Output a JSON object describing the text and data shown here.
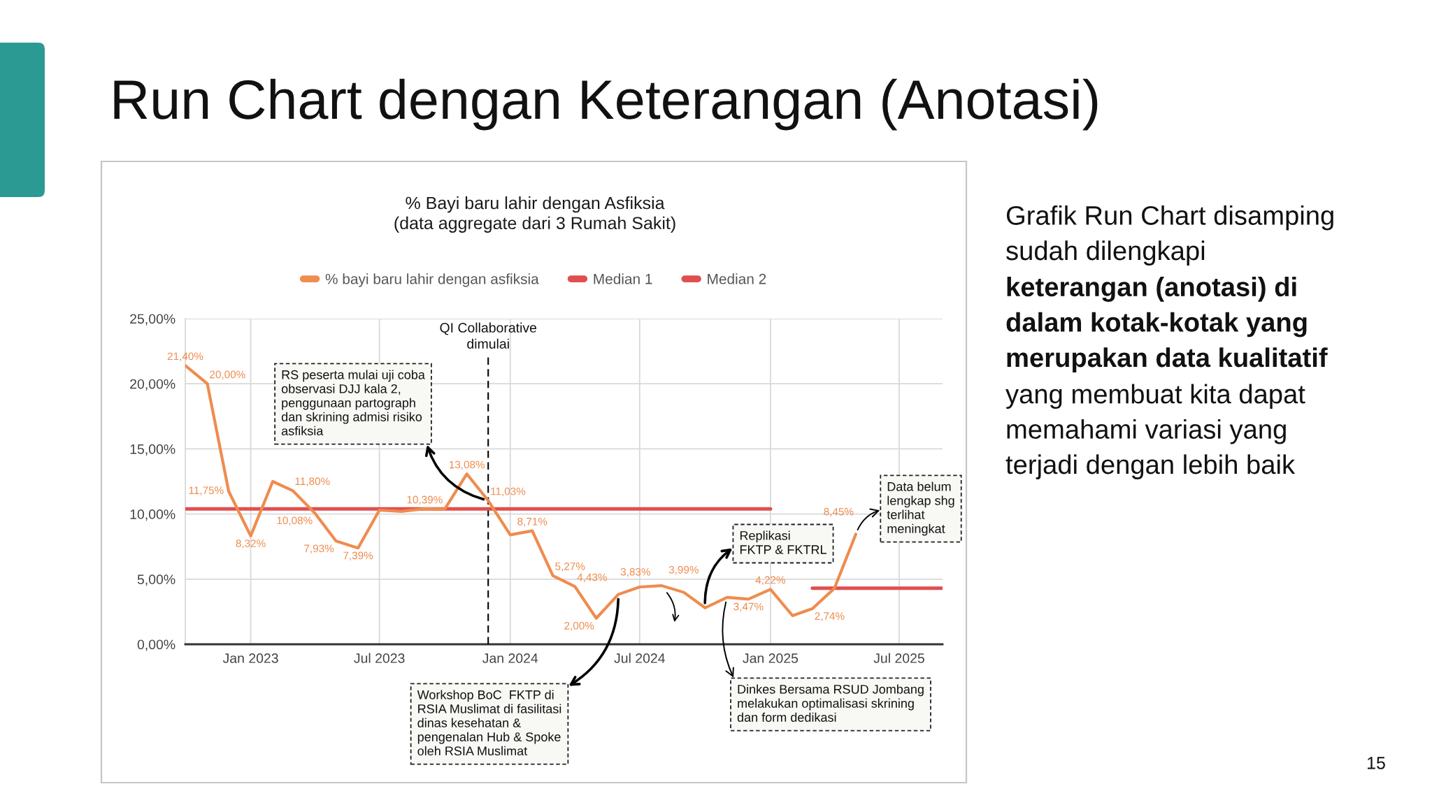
{
  "chart_data": [
    {
      "type": "line",
      "title": "% Bayi baru lahir dengan Asfiksia\n(data aggregate dari 3 Rumah Sakit)",
      "x": [
        "2022-10",
        "2022-11",
        "2022-12",
        "2023-01",
        "2023-02",
        "2023-03",
        "2023-04",
        "2023-05",
        "2023-06",
        "2023-07",
        "2023-08",
        "2023-09",
        "2023-10",
        "2023-11",
        "2023-12",
        "2024-01",
        "2024-02",
        "2024-03",
        "2024-04",
        "2024-05",
        "2024-06",
        "2024-07",
        "2024-08",
        "2024-09",
        "2024-10",
        "2024-11",
        "2024-12",
        "2025-01",
        "2025-02",
        "2025-03",
        "2025-04",
        "2025-05"
      ],
      "series": [
        {
          "name": "% bayi baru lahir dengan asfiksia",
          "color": "#ef8c4f",
          "values": [
            21.4,
            20.0,
            11.75,
            8.32,
            12.5,
            11.8,
            10.08,
            7.93,
            7.39,
            10.3,
            10.2,
            10.4,
            10.39,
            13.08,
            11.03,
            8.4,
            8.71,
            5.27,
            4.43,
            2.0,
            3.83,
            4.4,
            4.5,
            3.99,
            2.8,
            3.6,
            3.47,
            4.22,
            2.2,
            2.74,
            4.3,
            8.45
          ],
          "value_labels": [
            "21,40%",
            "20,00%",
            "11,75%",
            "8,32%",
            null,
            "11,80%",
            "10,08%",
            "7,93%",
            "7,39%",
            null,
            null,
            null,
            "10,39%",
            "13,08%",
            "11,03%",
            null,
            "8,71%",
            "5,27%",
            "4,43%",
            "2,00%",
            "3,83%",
            null,
            null,
            "3,99%",
            null,
            null,
            "3,47%",
            "4,22%",
            null,
            "2,74%",
            null,
            "8,45%"
          ]
        },
        {
          "name": "Median 1",
          "color": "#e04e4e",
          "x": [
            "2022-10",
            "2025-01"
          ],
          "values": [
            10.4,
            10.4
          ]
        },
        {
          "name": "Median 2",
          "color": "#e04e4e",
          "x": [
            "2025-03",
            "2025-08-31"
          ],
          "values": [
            4.3,
            4.3
          ]
        }
      ],
      "xlim": [
        "2022-10",
        "2025-08-31"
      ],
      "xticks": [
        {
          "value": "2023-01",
          "label": "Jan 2023"
        },
        {
          "value": "2023-07",
          "label": "Jul 2023"
        },
        {
          "value": "2024-01",
          "label": "Jan 2024"
        },
        {
          "value": "2024-07",
          "label": "Jul 2024"
        },
        {
          "value": "2025-01",
          "label": "Jan 2025"
        },
        {
          "value": "2025-07",
          "label": "Jul 2025"
        }
      ],
      "ylim": [
        0,
        25
      ],
      "yticks": [
        {
          "value": 0,
          "label": "0,00%"
        },
        {
          "value": 5,
          "label": "5,00%"
        },
        {
          "value": 10,
          "label": "10,00%"
        },
        {
          "value": 15,
          "label": "15,00%"
        },
        {
          "value": 20,
          "label": "20,00%"
        },
        {
          "value": 25,
          "label": "25,00%"
        }
      ],
      "grid": true,
      "legend": "top",
      "ref_lines": [
        {
          "axis": "x",
          "value": "2023-12",
          "label": "QI Collaborative\ndimulai",
          "color": "#000000",
          "line_style": "dashed"
        }
      ],
      "annotations": [
        {
          "text": "RS peserta mulai uji coba\nobservasi DJJ kala 2,\npenggunaan partograph\ndan skrining admisi risiko\nasfiksia",
          "x": "2023-12",
          "y": 11.03
        },
        {
          "text": "Workshop BoC  FKTP di\nRSIA Muslimat di fasilitasi\ndinas kesehatan &\npengenalan Hub & Spoke\noleh RSIA Muslimat",
          "x": "2024-06",
          "y": 3.83
        },
        {
          "text": "Replikasi\nFKTP & FKTRL",
          "x": "2024-10",
          "y": 2.8
        },
        {
          "text": "Dinkes Bersama RSUD Jombang\nmelakukan optimalisasi skrining\ndan form dedikasi",
          "x": "2024-11",
          "y": 3.6
        },
        {
          "text": "Data belum\nlengkap shg\nterlihat\nmeningkat",
          "x": "2025-05",
          "y": 8.45
        }
      ]
    },
    {
      "type": "other",
      "title": "Run Chart dengan Keterangan (Anotasi)",
      "annotations": [
        "Grafik Run Chart disamping\nsudah dilengkapi",
        "keterangan (anotasi) di\ndalam kotak-kotak yang\nmerupakan data kualitatif",
        "yang membuat kita dapat\nmemahami variasi yang\nterjadi dengan lebih baik",
        "15"
      ]
    }
  ]
}
